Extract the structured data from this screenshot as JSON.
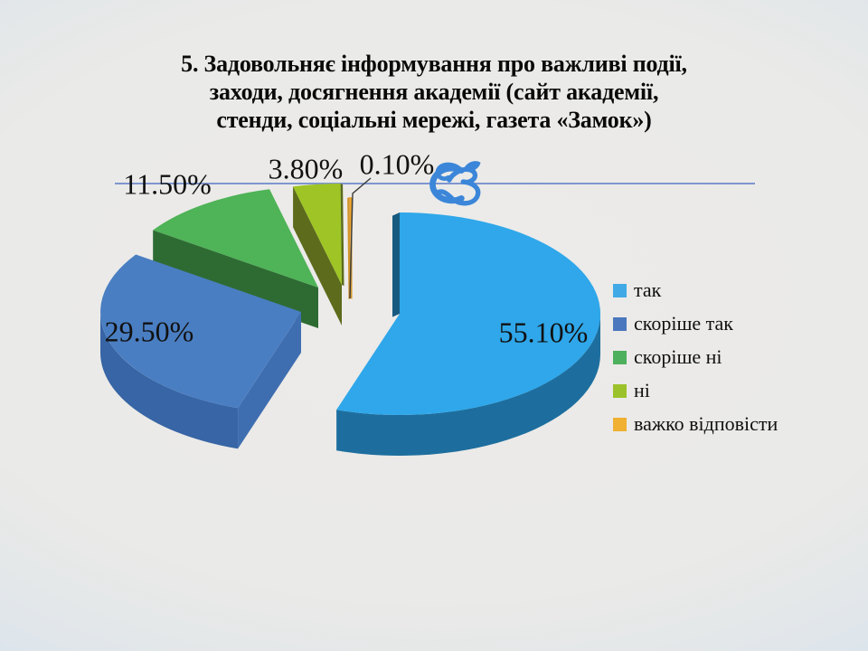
{
  "slide": {
    "title": "5. Задовольняє інформування про важливі події,\nзаходи, досягнення академії (сайт академії,\nстенди, соціальні мережі, газета «Замок»)"
  },
  "chart_data": {
    "type": "pie",
    "style": "3d-exploded-pie",
    "title": "5. Задовольняє інформування про важливі події, заходи, досягнення академії (сайт академії, стенди, соціальні мережі, газета «Замок»)",
    "labels": [
      "так",
      "скоріше так",
      "скоріше ні",
      "ні",
      "важко відповісти"
    ],
    "values": [
      55.1,
      29.5,
      11.5,
      3.8,
      0.1
    ],
    "value_labels": [
      "55.10%",
      "29.50%",
      "11.50%",
      "3.80%",
      "0.10%"
    ],
    "legend_position": "right",
    "slice_colors": [
      {
        "top": "#2fa7ea",
        "side": "#1d6e9e",
        "cut": "#175a80"
      },
      {
        "top": "#4a7ec2",
        "side": "#3765a5",
        "cut": "#3e6eb0"
      },
      {
        "top": "#4fb357",
        "side": "#2e6b33",
        "cut": "#2e6b33"
      },
      {
        "top": "#9ec525",
        "side": "#5c6b1c",
        "cut": "#5c6b1c"
      },
      {
        "top": "#efa733",
        "side": "#c08a28",
        "cut": "#d3952c"
      }
    ]
  },
  "legend": {
    "swatch_colors": [
      "#41aae6",
      "#4a77be",
      "#4cb05c",
      "#9cc22b",
      "#f0b032"
    ]
  },
  "decoration": {
    "divider_line_color": "#6b86cb",
    "ornament_color": "#3c86d9"
  }
}
